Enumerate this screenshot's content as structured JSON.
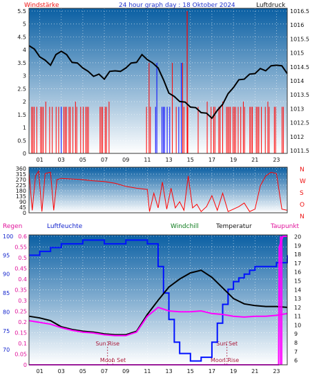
{
  "header": {
    "left": "Windstärke",
    "center": "24 hour graph day : 18 Oktober 2024",
    "right": "Luftdruck"
  },
  "colors": {
    "header_red": "#ee1111",
    "header_blue": "#2233cc",
    "wind": "#ff0000",
    "wind_blue": "#0000ff",
    "pressure": "#000000",
    "humidity": "#0011ff",
    "temperature": "#000000",
    "windchill": "#000000",
    "dewpoint": "#ff00ff",
    "panel_top": "#0a5fa3",
    "panel_bottom": "#ffffff"
  },
  "chart_data": [
    {
      "id": "wind_pressure",
      "type": "line",
      "x_hours": [
        0,
        24
      ],
      "x_tick_labels": [
        "01",
        "03",
        "05",
        "07",
        "09",
        "11",
        "13",
        "15",
        "17",
        "19",
        "21",
        "23"
      ],
      "y_left_ticks": [
        "0",
        "0.5",
        "1",
        "1.5",
        "2",
        "2.5",
        "3",
        "3.5",
        "4",
        "4.5",
        "5",
        "5.5"
      ],
      "y_left_range": [
        0,
        5.5
      ],
      "y_right_ticks": [
        "1011.5",
        "1012",
        "1012.5",
        "1013",
        "1013.5",
        "1014",
        "1014.5",
        "1015",
        "1015.5",
        "1016",
        "1016.5"
      ],
      "y_right_range": [
        1011.4,
        1016.6
      ],
      "series": [
        {
          "axis": "right",
          "x": [
            0,
            0.5,
            1.0,
            1.5,
            2.0,
            2.5,
            3.0,
            3.5,
            4.0,
            4.5,
            5.0,
            5.5,
            6.0,
            6.5,
            7.0,
            7.5,
            8.0,
            8.5,
            9.0,
            9.5,
            10.0,
            10.5,
            11.0,
            11.5,
            12.0,
            12.5,
            13.0,
            13.5,
            14.0,
            14.5,
            15.0,
            15.5,
            16.0,
            16.5,
            17.0,
            17.5,
            18.0,
            18.5,
            19.0,
            19.5,
            20.0,
            20.5,
            21.0,
            21.5,
            22.0,
            22.5,
            23.0,
            23.5,
            24.0
          ],
          "values": [
            1015.3,
            1015.1,
            1014.9,
            1014.7,
            1014.6,
            1014.9,
            1015.1,
            1014.9,
            1014.7,
            1014.6,
            1014.5,
            1014.3,
            1014.2,
            1014.2,
            1014.1,
            1014.3,
            1014.4,
            1014.3,
            1014.5,
            1014.6,
            1014.7,
            1014.9,
            1014.8,
            1014.6,
            1014.5,
            1014.0,
            1013.6,
            1013.4,
            1013.3,
            1013.2,
            1013.1,
            1013.0,
            1012.9,
            1012.8,
            1012.7,
            1012.9,
            1013.2,
            1013.5,
            1013.8,
            1014.0,
            1014.1,
            1014.2,
            1014.3,
            1014.4,
            1014.4,
            1014.5,
            1014.6,
            1014.5,
            1014.3
          ]
        }
      ]
    },
    {
      "id": "wind_direction",
      "type": "line",
      "x_hours": [
        0,
        24
      ],
      "y_ticks": [
        "0",
        "45",
        "90",
        "135",
        "180",
        "225",
        "270",
        "315",
        "360"
      ],
      "y_range": [
        0,
        360
      ],
      "right_labels": [
        "N",
        "W",
        "S",
        "O",
        "N"
      ],
      "series": [
        {
          "x": [
            0,
            0.3,
            0.6,
            0.9,
            1.2,
            1.5,
            2.0,
            2.3,
            2.6,
            3.0,
            4.0,
            5.0,
            6.0,
            7.0,
            8.0,
            9.0,
            10.0,
            11.0,
            11.2,
            11.6,
            12.0,
            12.4,
            12.8,
            13.2,
            13.6,
            14.0,
            14.4,
            14.8,
            15.2,
            15.6,
            16.0,
            16.5,
            17.0,
            17.5,
            18.0,
            18.5,
            19.0,
            19.5,
            20.0,
            20.5,
            21.0,
            21.5,
            22.0,
            22.5,
            23.0,
            23.5,
            24.0
          ],
          "values": [
            330,
            20,
            300,
            340,
            10,
            320,
            330,
            20,
            270,
            280,
            275,
            270,
            260,
            255,
            240,
            215,
            200,
            190,
            10,
            160,
            40,
            250,
            30,
            200,
            40,
            90,
            20,
            300,
            40,
            70,
            10,
            50,
            140,
            20,
            160,
            10,
            30,
            50,
            80,
            10,
            30,
            220,
            300,
            330,
            320,
            30,
            20
          ]
        }
      ]
    },
    {
      "id": "temperature_humidity",
      "type": "line",
      "x_hours": [
        0,
        24
      ],
      "x_tick_labels": [
        "01",
        "03",
        "05",
        "07",
        "09",
        "11",
        "13",
        "15",
        "17",
        "19",
        "21",
        "23"
      ],
      "y_left_humidity_ticks": [
        "70",
        "75",
        "80",
        "85",
        "90",
        "95",
        "100"
      ],
      "y_left_humidity_range": [
        66,
        100
      ],
      "y_left_rain_ticks": [
        "0",
        "0.05",
        "0.1",
        "0.15",
        "0.2",
        "0.25",
        "0.3",
        "0.35",
        "0.4",
        "0.45",
        "0.5",
        "0.55",
        "0.6"
      ],
      "y_left_rain_range": [
        0,
        0.6
      ],
      "y_right_ticks": [
        "6",
        "7",
        "8",
        "9",
        "10",
        "11",
        "12",
        "13",
        "14",
        "15",
        "16",
        "17",
        "18",
        "19",
        "20"
      ],
      "y_right_range": [
        5.5,
        20.2
      ],
      "labels": {
        "rain": "Regen",
        "humidity": "Luftfeuchte",
        "windchill": "Windchill",
        "temperature": "Temperatur",
        "dewpoint": "Taupunkt"
      },
      "events": [
        {
          "label": "Sun Rise",
          "hour": 7.3
        },
        {
          "label": "Moon Set",
          "hour": 7.8
        },
        {
          "label": "Sun Set",
          "hour": 18.4
        },
        {
          "label": "Moon Rise",
          "hour": 18.2
        }
      ],
      "series": [
        {
          "key": "humidity",
          "x": [
            0,
            0.5,
            1.0,
            2.0,
            3.0,
            4.0,
            5.0,
            6.0,
            7.0,
            8.0,
            9.0,
            10.0,
            11.0,
            12.0,
            12.5,
            13.0,
            13.5,
            14.0,
            15.0,
            16.0,
            17.0,
            17.5,
            18.0,
            18.5,
            19.0,
            19.5,
            20.0,
            20.5,
            21.0,
            22.0,
            23.0,
            24.0
          ],
          "values": [
            95,
            95,
            96,
            97,
            98,
            98,
            99,
            99,
            98,
            98,
            99,
            99,
            98,
            92,
            85,
            78,
            72,
            69,
            67,
            68,
            72,
            77,
            82,
            86,
            88,
            89,
            90,
            91,
            92,
            92,
            93,
            95
          ]
        },
        {
          "key": "temperature",
          "x": [
            0,
            1,
            2,
            3,
            4,
            5,
            6,
            7,
            8,
            9,
            10,
            11,
            12,
            13,
            14,
            15,
            16,
            17,
            18,
            19,
            20,
            21,
            22,
            23,
            24
          ],
          "values": [
            11,
            10.8,
            10.5,
            9.8,
            9.5,
            9.3,
            9.2,
            9.0,
            8.9,
            8.9,
            9.3,
            11.2,
            12.8,
            14.3,
            15.2,
            15.9,
            16.2,
            15.4,
            14.2,
            13.0,
            12.4,
            12.2,
            12.1,
            12.1,
            12.0
          ]
        },
        {
          "key": "dewpoint",
          "x": [
            0,
            1,
            2,
            3,
            4,
            5,
            6,
            7,
            8,
            9,
            10,
            11,
            12,
            13,
            14,
            15,
            16,
            17,
            18,
            19,
            20,
            21,
            22,
            23,
            24
          ],
          "values": [
            10.5,
            10.3,
            10.1,
            9.7,
            9.4,
            9.2,
            9.1,
            8.9,
            8.8,
            8.8,
            9.2,
            11.0,
            12.0,
            11.6,
            11.5,
            11.5,
            11.6,
            11.3,
            11.2,
            11.0,
            10.9,
            11.0,
            11.0,
            11.1,
            11.3
          ]
        },
        {
          "key": "rain",
          "x": [
            0,
            23.2,
            23.25,
            23.6,
            23.65,
            24.0
          ],
          "values": [
            0,
            0,
            0.55,
            0.6,
            0.6,
            0.6
          ]
        }
      ]
    }
  ]
}
